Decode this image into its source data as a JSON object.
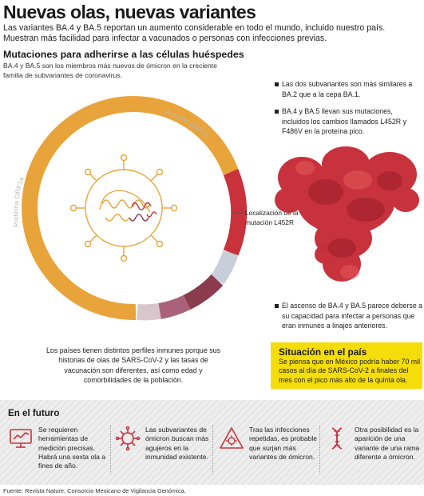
{
  "header": {
    "title": "Nuevas olas, nuevas variantes",
    "lead": "Las variantes BA.4 y BA.5 reportan un aumento considerable en todo el mundo, incluido nuestro país. Muestran más facilidad para infectar a vacunados o personas con infecciones previas."
  },
  "section": {
    "title": "Mutaciones para adherirse a las células huéspedes",
    "desc": "BA.4 y BA.5 son los miembros más nuevos de ómicron en la creciente familia de subvariantes de coronavirus."
  },
  "diagram": {
    "label_orf1b": "Proteína ORF1b",
    "label_orf1a": "Proteína ORF1a",
    "location_label": "Localización de la mutación L452R"
  },
  "bullets": [
    "Las dos subvariantes son más similares a BA.2 que a la cepa BA.1.",
    "BA.4 y BA.5 llevan sus mutaciones, incluidos los cambios llamados L452R y F486V en la proteína pico.",
    "El ascenso de BA.4 y BA.5 parece deberse a su capacidad para infectar a personas que eran inmunes a linajes anteriores."
  ],
  "para_left": "Los países tienen distintos perfiles inmunes porque sus historias de olas de SARS-CoV-2 y las tasas de vacunación son diferentes, así como edad y comorbilidades de la población.",
  "situacion": {
    "title": "Situación en el país",
    "body": "Se piensa que en México podría haber 70 mil casos al día de SARS-CoV-2 a finales del mes con el pico más alto de la quinta ola."
  },
  "futuro": {
    "title": "En el futuro",
    "items": [
      {
        "icon": "monitor-chart-icon",
        "text": "Se requieren herramientas de medición precisas. Habrá una sexta ola a fines de año."
      },
      {
        "icon": "virus-icon",
        "text": "Las subvariantes de ómicron buscan más agujeros en la inmunidad existente."
      },
      {
        "icon": "warning-virus-icon",
        "text": "Tras las infecciones repetidas, es probable que surjan más variantes de ómicron."
      },
      {
        "icon": "dna-icon",
        "text": "Otra posibilidad es la aparición de una variante de una rama diferente a ómicron."
      }
    ]
  },
  "source": "Fuente: Revista Nature, Consorcio Mexicano de Vigilancia Genómica.",
  "colors": {
    "ring_orange": "#e8a43a",
    "ring_red": "#c9323a",
    "ring_dark": "#8a3b4e",
    "ring_light": "#c9cfd8",
    "highlight_yellow": "#f5dd0a",
    "protein_red": "#c8323d"
  }
}
